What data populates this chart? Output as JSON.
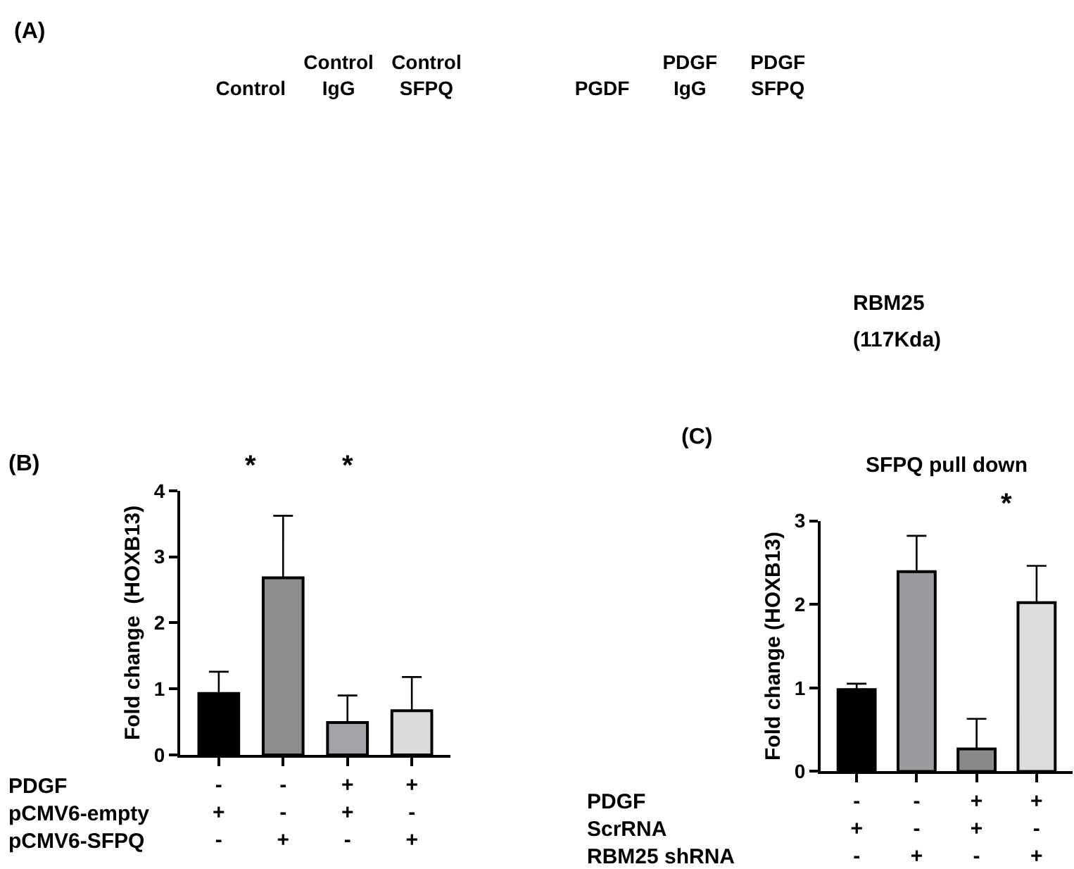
{
  "chart_data": [
    {
      "type": "other",
      "title": "(A)",
      "categories": [
        "Control",
        "Control\nIgG",
        "Control\nSFPQ",
        null,
        "PGDF",
        "PDGF\nIgG",
        "PDGF\nSFPQ"
      ],
      "annotations": [
        "RBM25",
        "(117Kda)"
      ]
    },
    {
      "type": "bar",
      "title": "(B)",
      "ylabel": "Fold change  (HOXB13)",
      "categories": [
        "-\n+\n-",
        "-\n-\n+",
        "+\n+\n-",
        "+\n-\n+"
      ],
      "values": [
        0.93,
        2.68,
        0.49,
        0.67
      ],
      "errors": [
        [
          0.93,
          1.26
        ],
        [
          2.68,
          3.62
        ],
        [
          0.49,
          0.9
        ],
        [
          0.67,
          1.18
        ]
      ],
      "colors": [
        "#000000",
        "#8e8e8e",
        "#a2a2a8",
        "#dadada"
      ],
      "ylim": [
        0,
        4
      ],
      "yticks": [
        0,
        1,
        2,
        3,
        4
      ],
      "annotations": [
        "PDGF\npCMV6-empty\npCMV6-SFPQ",
        "*",
        "*"
      ]
    },
    {
      "type": "bar",
      "title": "(C)",
      "subtitle": "SFPQ pull down",
      "ylabel": "Fold change (HOXB13)",
      "categories": [
        "-\n+\n-",
        "-\n-\n+",
        "+\n+\n-",
        "+\n-\n+"
      ],
      "values": [
        0.98,
        2.39,
        0.27,
        2.02
      ],
      "errors": [
        [
          0.98,
          1.05
        ],
        [
          2.39,
          2.82
        ],
        [
          0.27,
          0.63
        ],
        [
          2.02,
          2.46
        ]
      ],
      "colors": [
        "#000000",
        "#9c9ca0",
        "#8a8a8a",
        "#dcdcdc"
      ],
      "ylim": [
        0,
        3
      ],
      "yticks": [
        0,
        1,
        2,
        3
      ],
      "annotations": [
        "PDGF\nScrRNA\nRBM25 shRNA",
        "*"
      ]
    }
  ]
}
